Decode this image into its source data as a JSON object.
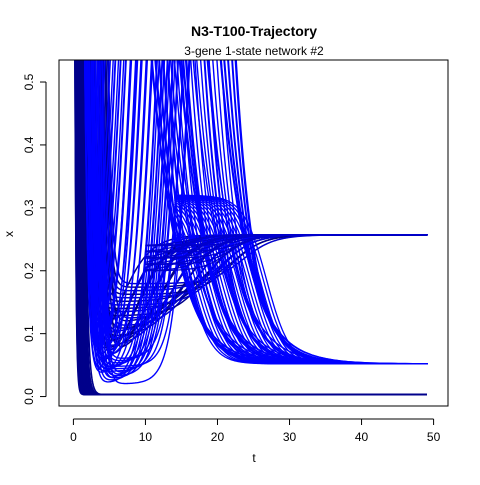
{
  "chart_data": {
    "type": "line",
    "title": "N3-T100-Trajectory",
    "subtitle": "3-gene 1-state network #2",
    "xlabel": "t",
    "ylabel": "x",
    "xlim": [
      -2,
      52
    ],
    "ylim": [
      -0.015,
      0.535
    ],
    "x_ticks": [
      0,
      10,
      20,
      30,
      40,
      50
    ],
    "y_ticks": [
      0.0,
      0.1,
      0.2,
      0.3,
      0.4,
      0.5
    ],
    "x_tick_labels": [
      "0",
      "10",
      "20",
      "30",
      "40",
      "50"
    ],
    "y_tick_labels": [
      "0.0",
      "0.1",
      "0.2",
      "0.3",
      "0.4",
      "0.5"
    ],
    "grid": false,
    "legend": "none",
    "series_groups": [
      {
        "name": "",
        "color": "#00008B",
        "description_steady_state": 0.003,
        "trajectories": [
          {
            "x": [
              0.3,
              0.6,
              0.9,
              1.2,
              1.5,
              2,
              3,
              50
            ],
            "y": [
              0.535,
              0.3,
              0.12,
              0.04,
              0.01,
              0.004,
              0.003,
              0.003
            ]
          },
          {
            "x": [
              0.5,
              0.8,
              1.1,
              1.4,
              1.8,
              2.5,
              4,
              50
            ],
            "y": [
              0.535,
              0.28,
              0.1,
              0.03,
              0.008,
              0.004,
              0.003,
              0.003
            ]
          },
          {
            "x": [
              0.8,
              1.0,
              1.3,
              1.6,
              2.0,
              3,
              5,
              50
            ],
            "y": [
              0.535,
              0.25,
              0.09,
              0.025,
              0.006,
              0.003,
              0.003,
              0.003
            ]
          }
        ]
      },
      {
        "name": "",
        "color": "#0000CD",
        "steady_state": 0.257,
        "trajectories": [
          {
            "x": [
              1.5,
              2,
              2.5,
              3,
              3.6,
              4.5,
              6,
              9,
              13,
              17,
              20,
              23,
              26,
              28,
              30,
              50
            ],
            "y": [
              0.535,
              0.4,
              0.3,
              0.23,
              0.19,
              0.185,
              0.2,
              0.225,
              0.245,
              0.252,
              0.255,
              0.257,
              0.257,
              0.257,
              0.257,
              0.257
            ]
          },
          {
            "x": [
              2,
              2.5,
              3,
              3.5,
              4.2,
              6,
              9,
              12,
              15,
              19,
              23,
              27,
              30,
              50
            ],
            "y": [
              0.535,
              0.3,
              0.15,
              0.07,
              0.04,
              0.05,
              0.09,
              0.15,
              0.2,
              0.235,
              0.25,
              0.256,
              0.257,
              0.257
            ]
          },
          {
            "x": [
              3,
              3.4,
              3.8,
              4.3,
              5,
              7,
              10,
              14,
              18,
              22,
              26,
              30,
              50
            ],
            "y": [
              0.535,
              0.25,
              0.1,
              0.04,
              0.025,
              0.03,
              0.06,
              0.12,
              0.19,
              0.235,
              0.252,
              0.257,
              0.257
            ]
          }
        ]
      },
      {
        "name": "",
        "color": "#0000FF",
        "steady_state": 0.052,
        "trajectories": [
          {
            "x": [
              14,
              15.5,
              17,
              18.5,
              20,
              22,
              24,
              26,
              28,
              30,
              50
            ],
            "y": [
              0.535,
              0.45,
              0.35,
              0.25,
              0.16,
              0.1,
              0.075,
              0.062,
              0.056,
              0.053,
              0.052
            ]
          },
          {
            "x": [
              18,
              19,
              20,
              21,
              22,
              23.5,
              25,
              27,
              29,
              31,
              50
            ],
            "y": [
              0.535,
              0.4,
              0.3,
              0.2,
              0.14,
              0.09,
              0.07,
              0.058,
              0.054,
              0.052,
              0.052
            ]
          },
          {
            "x": [
              11,
              13,
              15,
              17,
              19,
              21,
              23,
              25,
              27,
              50
            ],
            "y": [
              0.535,
              0.42,
              0.3,
              0.2,
              0.12,
              0.08,
              0.062,
              0.055,
              0.053,
              0.052
            ]
          }
        ]
      }
    ]
  }
}
